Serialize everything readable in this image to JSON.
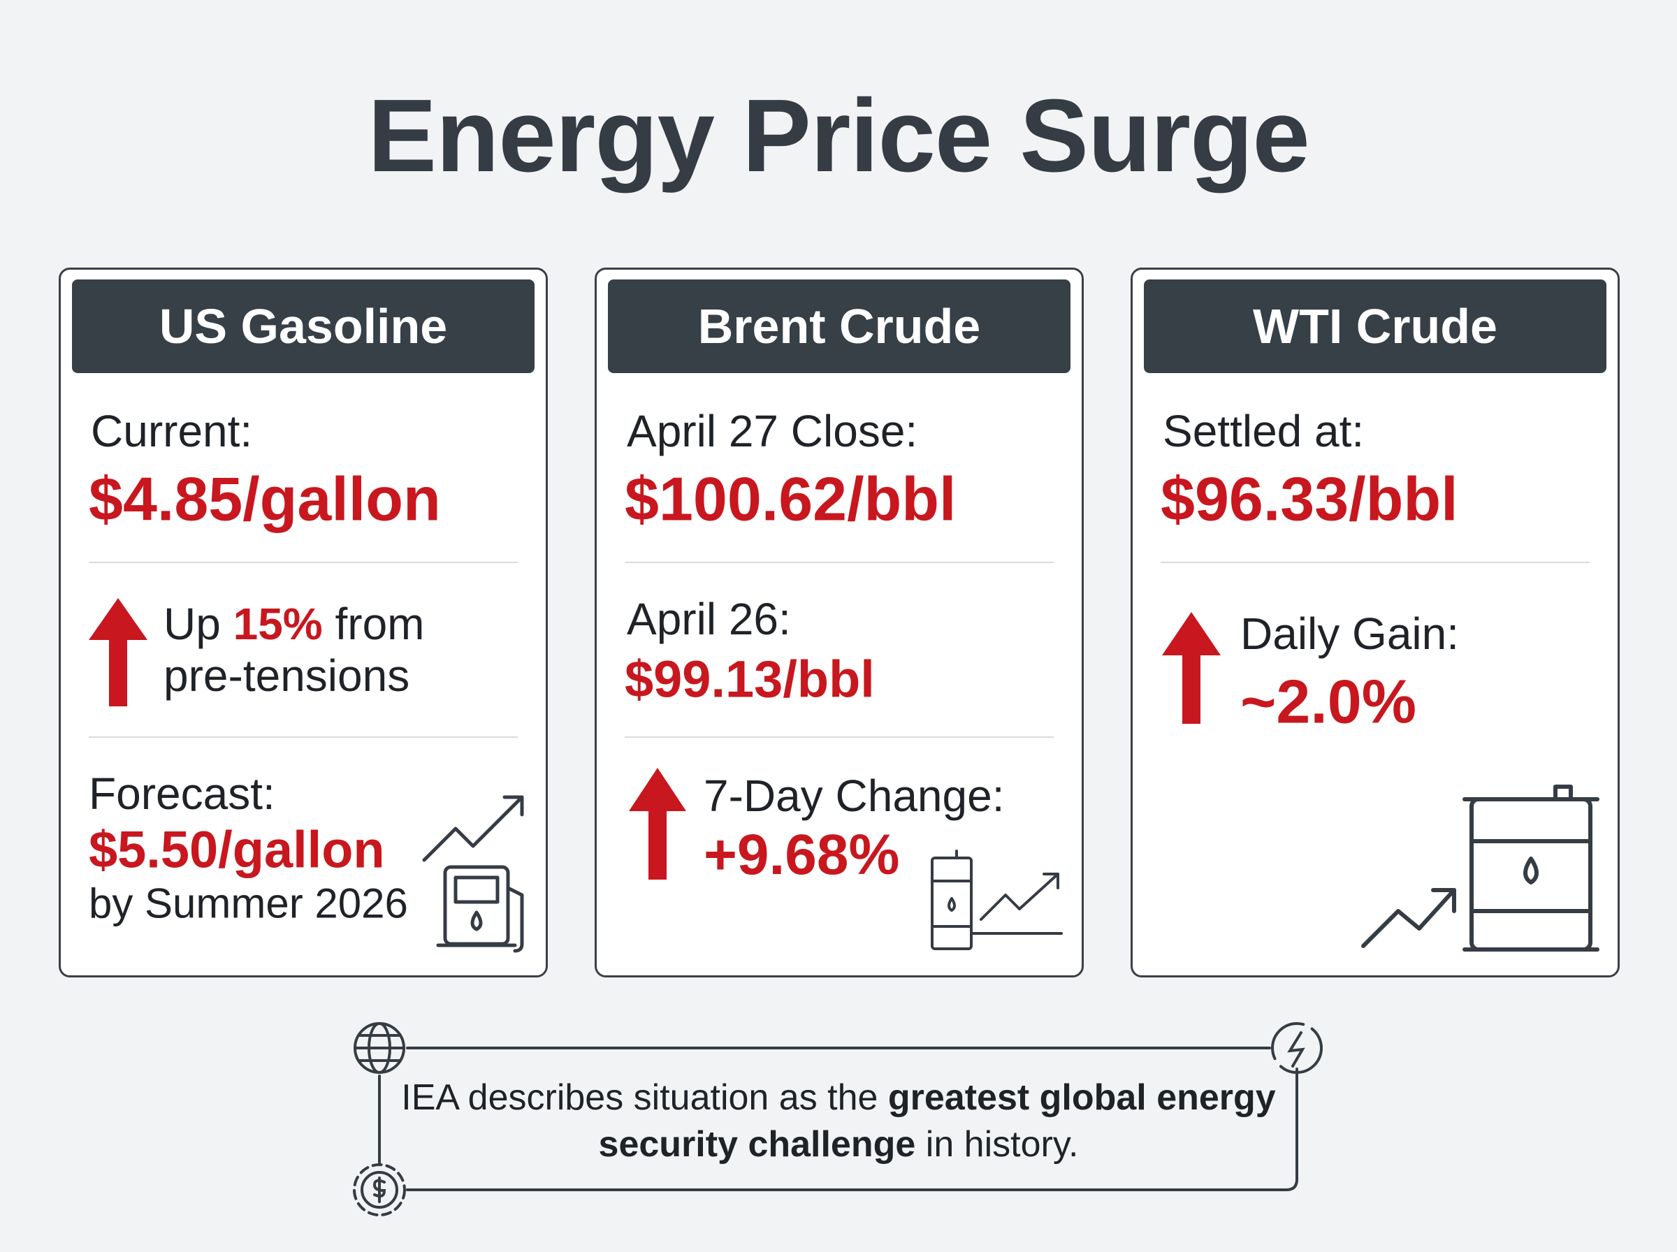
{
  "header": {
    "title": "Energy Price Surge"
  },
  "cards": [
    {
      "title": "US Gasoline",
      "current_label": "Current:",
      "current_value": "$4.85/gallon",
      "change_prefix": "Up",
      "change_value": "15%",
      "change_suffix": "from pre-tensions",
      "forecast_label": "Forecast:",
      "forecast_value": "$5.50/gallon",
      "forecast_note": "by Summer 2026"
    },
    {
      "title": "Brent Crude",
      "close_label": "April 27 Close:",
      "close_value": "$100.62/bbl",
      "prior_label": "April 26:",
      "prior_value": "$99.13/bbl",
      "change_label": "7-Day Change:",
      "change_value": "+9.68%"
    },
    {
      "title": "WTI Crude",
      "settled_label": "Settled at:",
      "settled_value": "$96.33/bbl",
      "gain_label": "Daily Gain:",
      "gain_value": "~2.0%"
    }
  ],
  "footer": {
    "text_start": "IEA describes situation as the",
    "text_bold": "greatest global energy security challenge",
    "text_end": "in history."
  }
}
